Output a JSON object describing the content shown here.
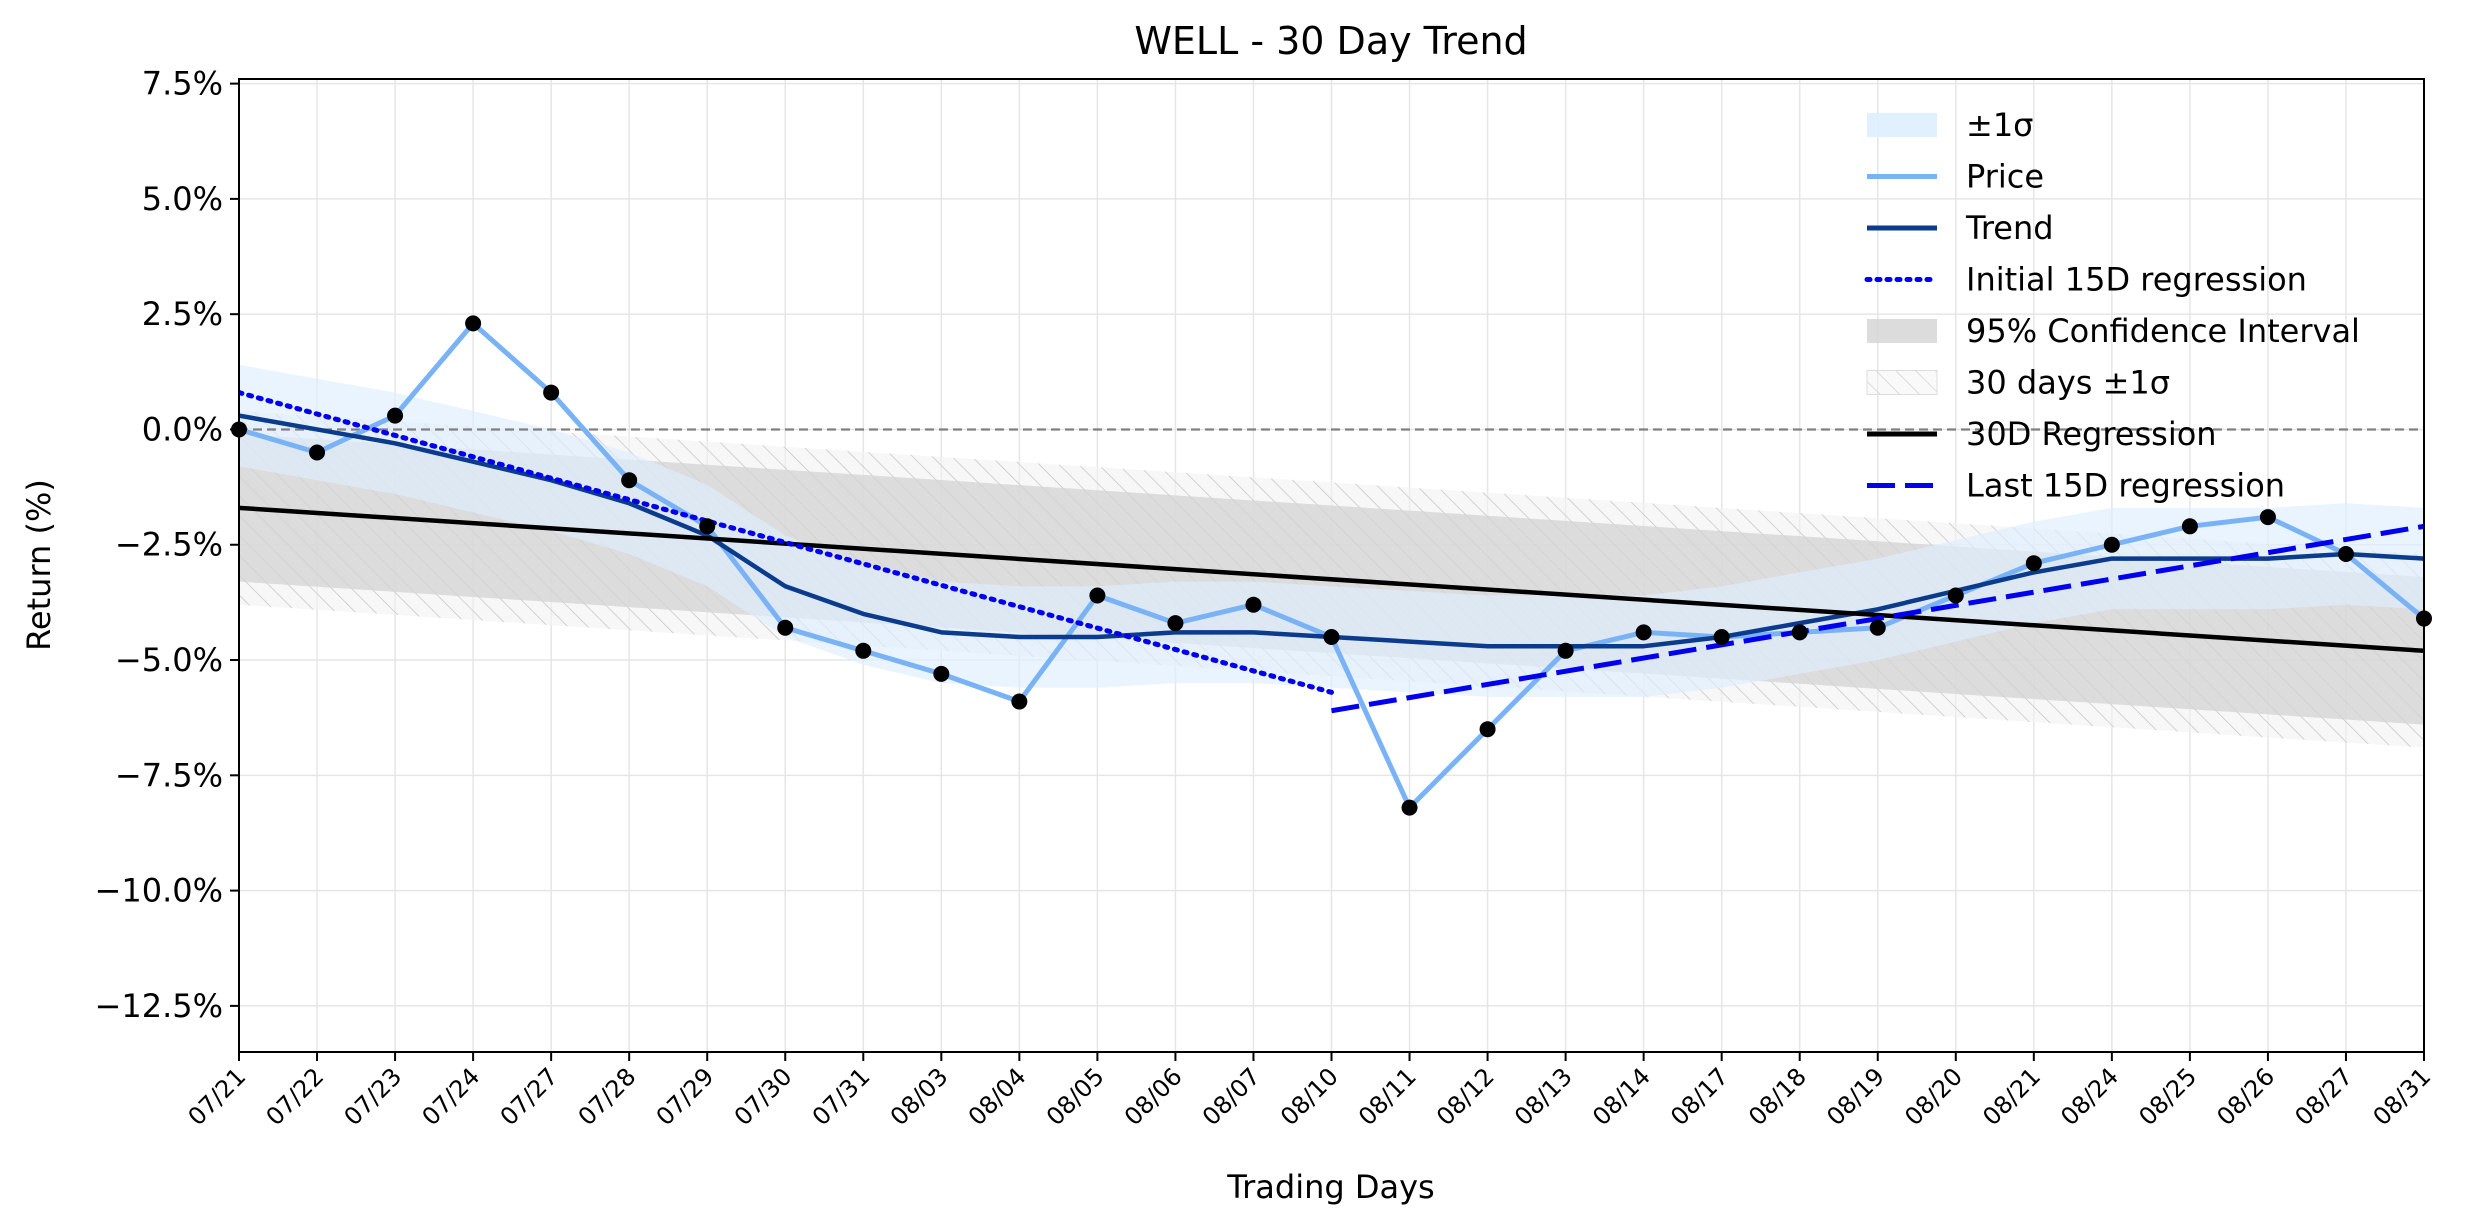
{
  "chart_data": {
    "type": "line",
    "title": "WELL - 30 Day Trend",
    "xlabel": "Trading Days",
    "ylabel": "Return (%)",
    "categories": [
      "07/21",
      "07/22",
      "07/23",
      "07/24",
      "07/27",
      "07/28",
      "07/29",
      "07/30",
      "07/31",
      "08/03",
      "08/04",
      "08/05",
      "08/06",
      "08/07",
      "08/10",
      "08/11",
      "08/12",
      "08/13",
      "08/14",
      "08/17",
      "08/18",
      "08/19",
      "08/20",
      "08/21",
      "08/24",
      "08/25",
      "08/26",
      "08/27",
      "08/31"
    ],
    "ylim": [
      -13.5,
      7.6
    ],
    "yticks": [
      7.5,
      5.0,
      2.5,
      0.0,
      -2.5,
      -5.0,
      -7.5,
      -10.0,
      -12.5
    ],
    "ytick_labels": [
      "7.5%",
      "5.0%",
      "2.5%",
      "0.0%",
      "−2.5%",
      "−5.0%",
      "−7.5%",
      "−10.0%",
      "−12.5%"
    ],
    "grid": true,
    "legend_position": "top-right",
    "zero_line": 0.0,
    "series": [
      {
        "name": "Price",
        "style": "line-markers",
        "color": "#7ab3f5",
        "values": [
          0.0,
          -0.5,
          0.3,
          2.3,
          0.8,
          -1.1,
          -2.1,
          -4.3,
          -4.8,
          -5.3,
          -5.9,
          -3.6,
          -4.2,
          -3.8,
          -4.5,
          -8.2,
          -6.5,
          -4.8,
          -4.4,
          -4.5,
          -4.4,
          -4.3,
          -3.6,
          -2.9,
          -2.5,
          -2.1,
          -1.9,
          -2.7,
          -4.1
        ]
      },
      {
        "name": "Trend",
        "style": "line",
        "color": "#0a3b8c",
        "values": [
          0.3,
          0.0,
          -0.3,
          -0.7,
          -1.1,
          -1.6,
          -2.3,
          -3.4,
          -4.0,
          -4.4,
          -4.5,
          -4.5,
          -4.4,
          -4.4,
          -4.5,
          -4.6,
          -4.7,
          -4.7,
          -4.7,
          -4.5,
          -4.2,
          -3.9,
          -3.5,
          -3.1,
          -2.8,
          -2.8,
          -2.8,
          -2.7,
          -2.8
        ]
      },
      {
        "name": "Initial 15D regression",
        "style": "dotted",
        "color": "#0000ee",
        "x_range": [
          0,
          14
        ],
        "y_range": [
          0.8,
          -5.7
        ]
      },
      {
        "name": "Last 15D regression",
        "style": "dashed",
        "color": "#0000ee",
        "x_range": [
          14,
          28
        ],
        "y_range": [
          -6.1,
          -2.1
        ]
      },
      {
        "name": "30D Regression",
        "style": "line",
        "color": "#000000",
        "x_range": [
          0,
          28
        ],
        "y_range": [
          -1.7,
          -4.8
        ]
      }
    ],
    "bands": [
      {
        "name": "±1σ",
        "color": "#ddeeff",
        "around": "Trend",
        "half_width": 1.1
      },
      {
        "name": "95% Confidence Interval",
        "color": "#d3d3d3",
        "around": "30D Regression",
        "half_width": 1.6
      },
      {
        "name": "30 days ±1σ",
        "color": "#e9e9e9",
        "hatched": true,
        "around": "30D Regression",
        "half_width": 2.1
      }
    ],
    "legend": [
      {
        "label": "±1σ",
        "kind": "patch",
        "color": "#ddeeff"
      },
      {
        "label": "Price",
        "kind": "line",
        "color": "#7ab3f5"
      },
      {
        "label": "Trend",
        "kind": "line",
        "color": "#0a3b8c"
      },
      {
        "label": "Initial 15D regression",
        "kind": "dotted",
        "color": "#0000ee"
      },
      {
        "label": "95% Confidence Interval",
        "kind": "patch",
        "color": "#d3d3d3"
      },
      {
        "label": "30 days ±1σ",
        "kind": "hatch",
        "color": "#e9e9e9"
      },
      {
        "label": "30D Regression",
        "kind": "line",
        "color": "#000000"
      },
      {
        "label": "Last 15D regression",
        "kind": "dashed",
        "color": "#0000ee"
      }
    ]
  }
}
